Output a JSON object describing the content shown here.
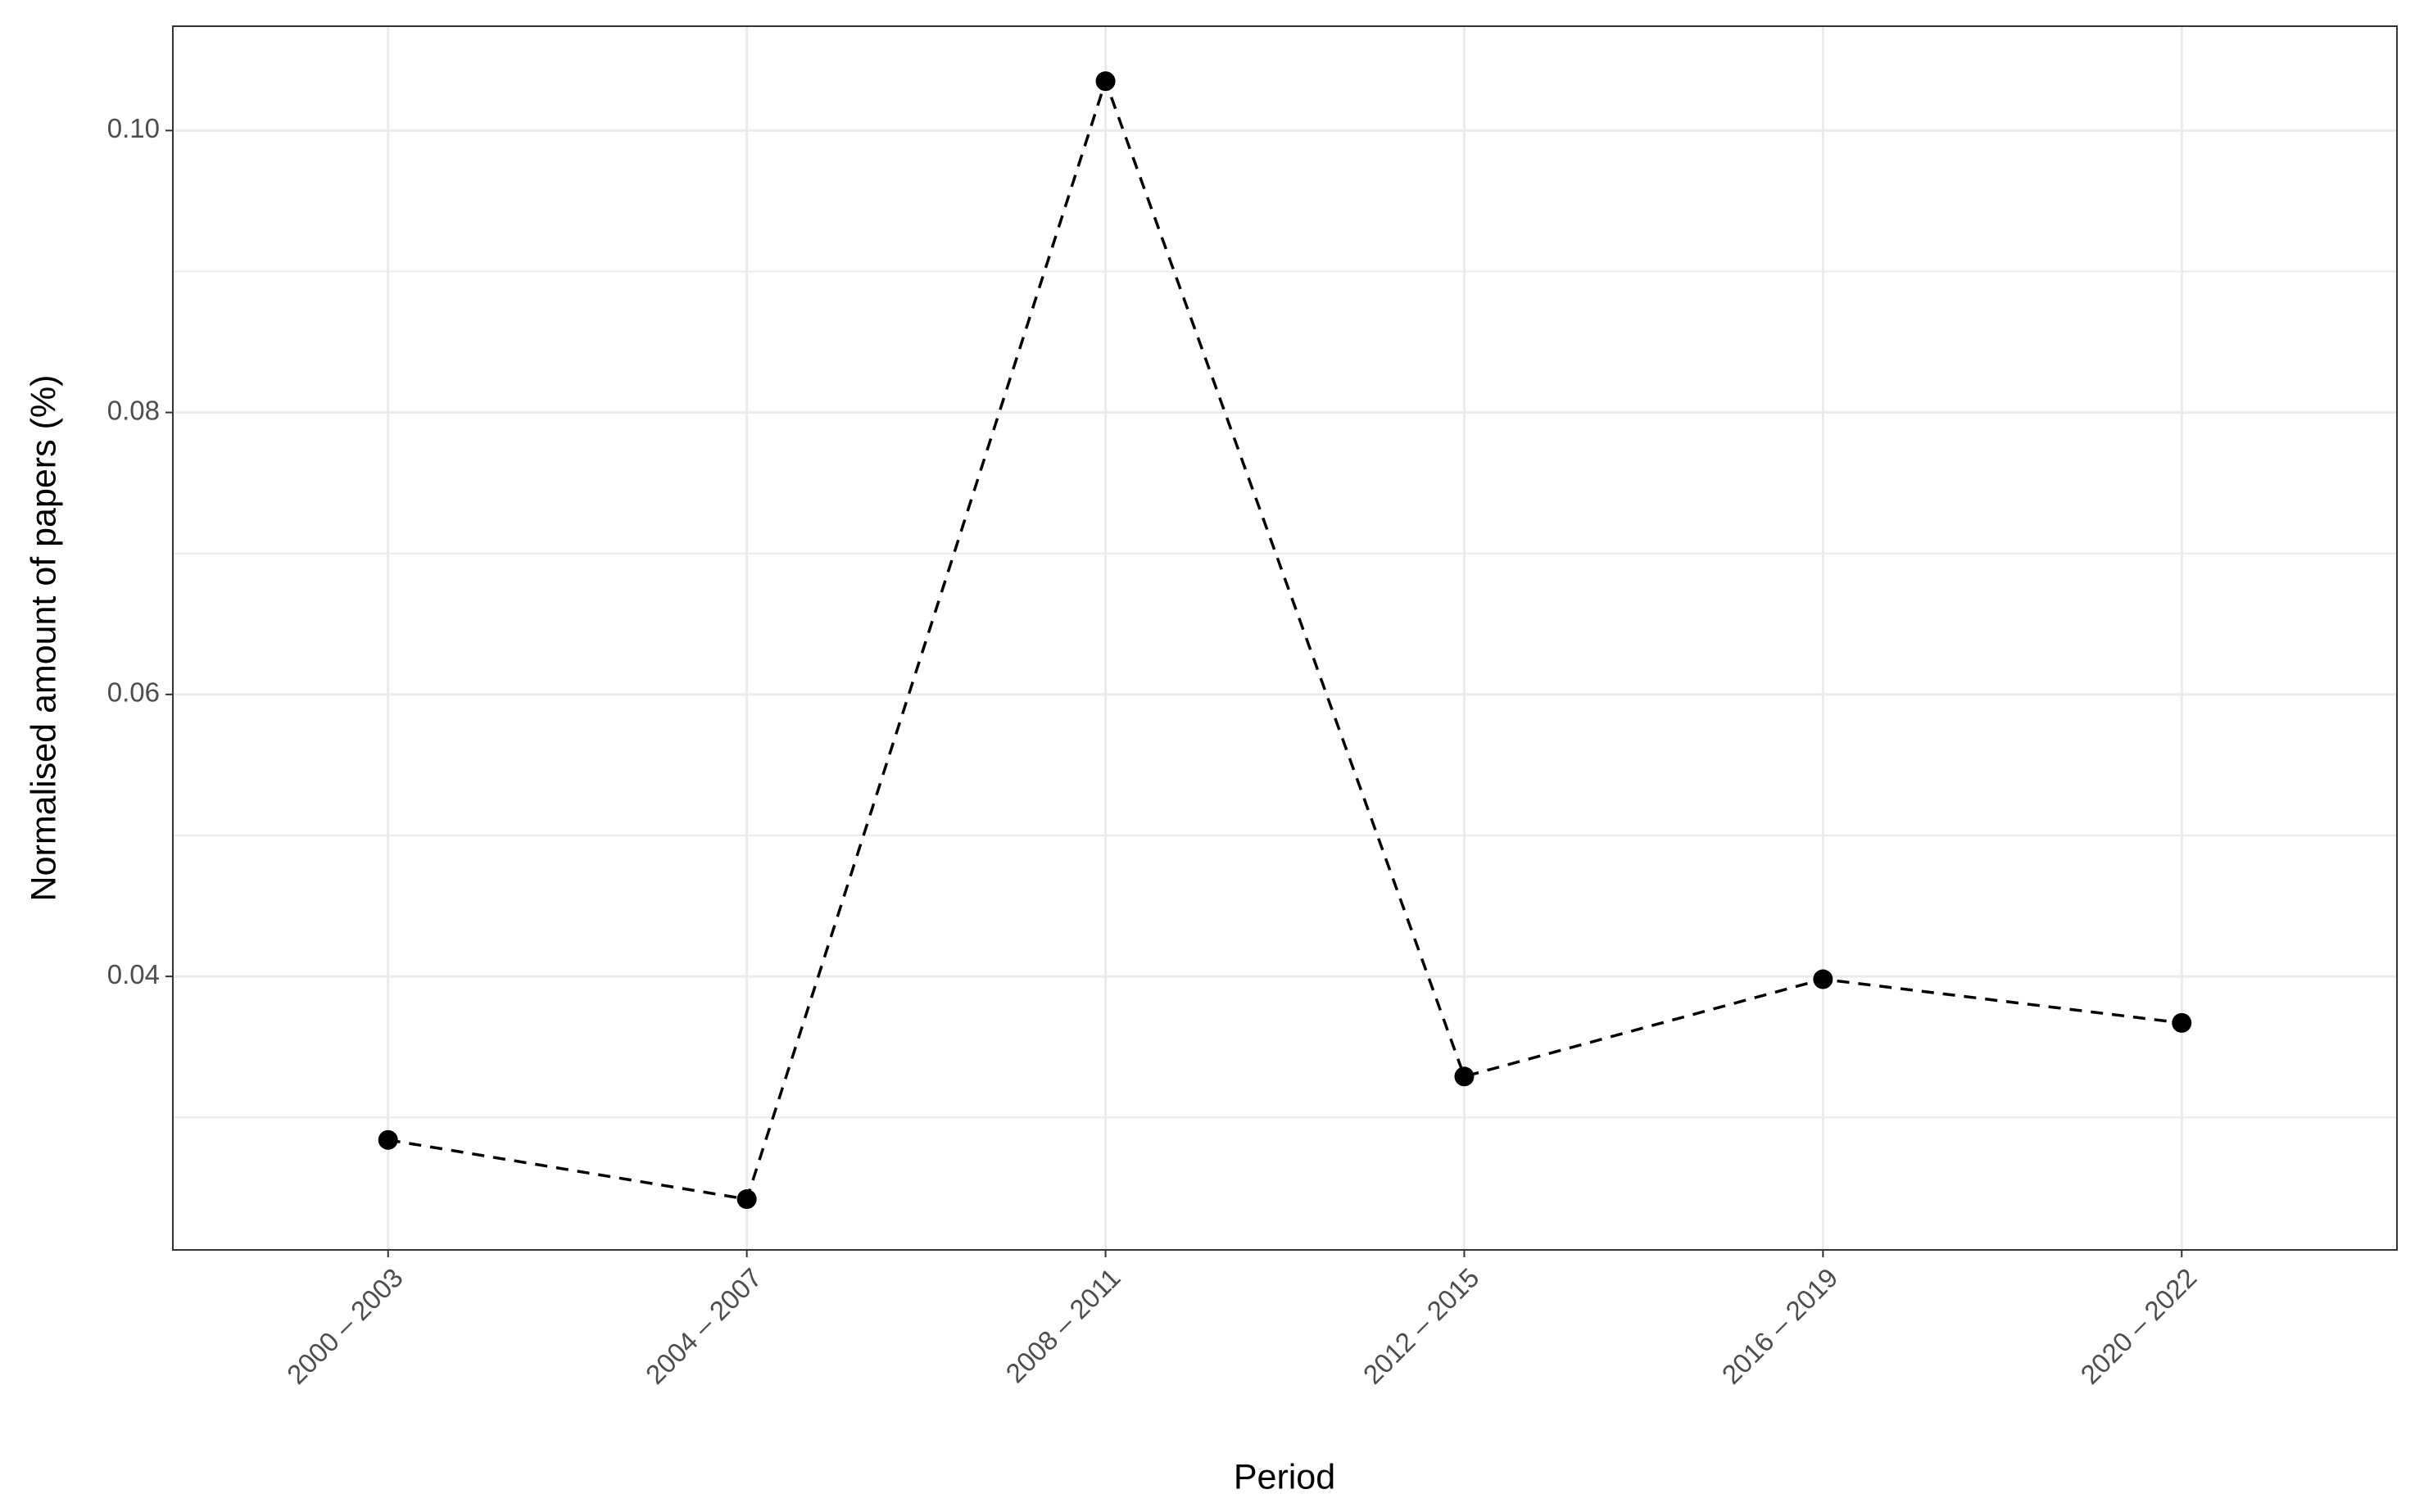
{
  "chart_data": {
    "type": "line",
    "x_label": "Period",
    "y_label": "Normalised amount of papers (%)",
    "categories": [
      "2000 – 2003",
      "2004 – 2007",
      "2008 – 2011",
      "2012 – 2015",
      "2016 – 2019",
      "2020 – 2022"
    ],
    "values": [
      0.0284,
      0.0242,
      0.1035,
      0.0329,
      0.0398,
      0.0367
    ],
    "color": "#000000",
    "line_style": "dashed",
    "ylim": [
      0.0206,
      0.1074
    ],
    "yticks": [
      0.04,
      0.06,
      0.08,
      {
        "value": 0.1,
        "label": "0.10"
      }
    ],
    "y_minor_ticks": [
      0.03,
      0.05,
      0.07,
      0.09
    ],
    "grid": true
  }
}
